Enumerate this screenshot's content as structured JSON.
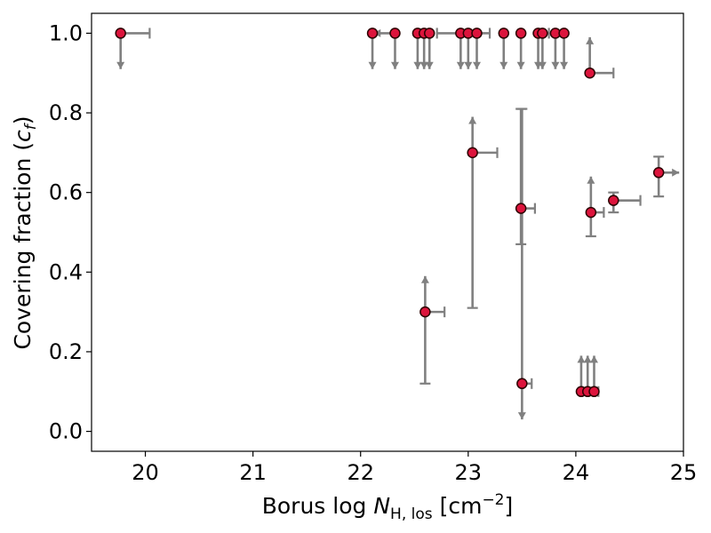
{
  "chart_data": {
    "type": "scatter",
    "xlabel": "Borus log N_{H, los} [cm^{-2}]",
    "xlabel_parts": {
      "prefix": "Borus log ",
      "sym": "N",
      "sub": "H, los",
      "unit_open": " [cm",
      "sup": "−2",
      "unit_close": "]"
    },
    "ylabel": "Covering fraction (c_f)",
    "ylabel_parts": {
      "prefix": "Covering fraction (",
      "sym": "c",
      "sub": "f",
      "suffix": ")"
    },
    "xlim": [
      19.5,
      25.0
    ],
    "ylim": [
      -0.05,
      1.05
    ],
    "xticks": [
      20,
      21,
      22,
      23,
      24,
      25
    ],
    "xtick_labels": [
      "20",
      "21",
      "22",
      "23",
      "24",
      "25"
    ],
    "yticks": [
      0.0,
      0.2,
      0.4,
      0.6,
      0.8,
      1.0
    ],
    "ytick_labels": [
      "0.0",
      "0.2",
      "0.4",
      "0.6",
      "0.8",
      "1.0"
    ],
    "grid": false,
    "marker_color": "#dc143c",
    "errorbar_color": "#808080",
    "points": [
      {
        "x": 19.77,
        "y": 1.0,
        "xerr_hi": 0.27,
        "y_limit": "down"
      },
      {
        "x": 22.11,
        "y": 1.0,
        "y_limit": "down"
      },
      {
        "x": 22.32,
        "y": 1.0,
        "xerr_lo": 0.2,
        "x_limit": "left",
        "y_limit": "down"
      },
      {
        "x": 22.53,
        "y": 1.0,
        "y_limit": "down"
      },
      {
        "x": 22.59,
        "y": 1.0,
        "y_limit": "down"
      },
      {
        "x": 22.64,
        "y": 1.0,
        "y_limit": "down"
      },
      {
        "x": 22.93,
        "y": 1.0,
        "xerr_lo": 0.22,
        "y_limit": "down"
      },
      {
        "x": 23.0,
        "y": 1.0,
        "y_limit": "down"
      },
      {
        "x": 23.08,
        "y": 1.0,
        "xerr_hi": 0.12,
        "y_limit": "down"
      },
      {
        "x": 23.33,
        "y": 1.0,
        "y_limit": "down"
      },
      {
        "x": 23.49,
        "y": 1.0,
        "y_limit": "down"
      },
      {
        "x": 23.65,
        "y": 1.0,
        "xerr_hi": 0.1,
        "y_limit": "down"
      },
      {
        "x": 23.69,
        "y": 1.0,
        "y_limit": "down"
      },
      {
        "x": 23.81,
        "y": 1.0,
        "y_limit": "down"
      },
      {
        "x": 23.89,
        "y": 1.0,
        "y_limit": "down"
      },
      {
        "x": 24.13,
        "y": 0.9,
        "xerr_hi": 0.22,
        "y_limit": "up",
        "y_to": 0.99
      },
      {
        "x": 23.04,
        "y": 0.7,
        "xerr_hi": 0.23,
        "y_limit": "up",
        "y_to": 0.79,
        "yerr_lo": 0.39
      },
      {
        "x": 24.77,
        "y": 0.65,
        "yerr_lo": 0.06,
        "yerr_hi": 0.04,
        "x_limit": "right",
        "x_to": 24.96
      },
      {
        "x": 24.35,
        "y": 0.58,
        "yerr_lo": 0.03,
        "yerr_hi": 0.02,
        "xerr_hi": 0.25
      },
      {
        "x": 23.49,
        "y": 0.56,
        "yerr_lo": 0.09,
        "yerr_hi": 0.25,
        "xerr_hi": 0.13
      },
      {
        "x": 24.14,
        "y": 0.55,
        "yerr_lo": 0.06,
        "y_limit": "up",
        "y_to": 0.64,
        "xerr_hi": 0.12
      },
      {
        "x": 22.6,
        "y": 0.3,
        "yerr_lo": 0.18,
        "y_limit": "up",
        "y_to": 0.39,
        "xerr_hi": 0.18
      },
      {
        "x": 23.5,
        "y": 0.12,
        "yerr_hi": 0.69,
        "y_limit": "down",
        "y_to": 0.03,
        "xerr_hi": 0.09
      },
      {
        "x": 24.05,
        "y": 0.1,
        "y_limit": "up",
        "y_to": 0.19
      },
      {
        "x": 24.11,
        "y": 0.1,
        "y_limit": "up",
        "y_to": 0.19
      },
      {
        "x": 24.17,
        "y": 0.1,
        "y_limit": "up",
        "y_to": 0.19,
        "xerr_hi": 0.04
      }
    ]
  }
}
